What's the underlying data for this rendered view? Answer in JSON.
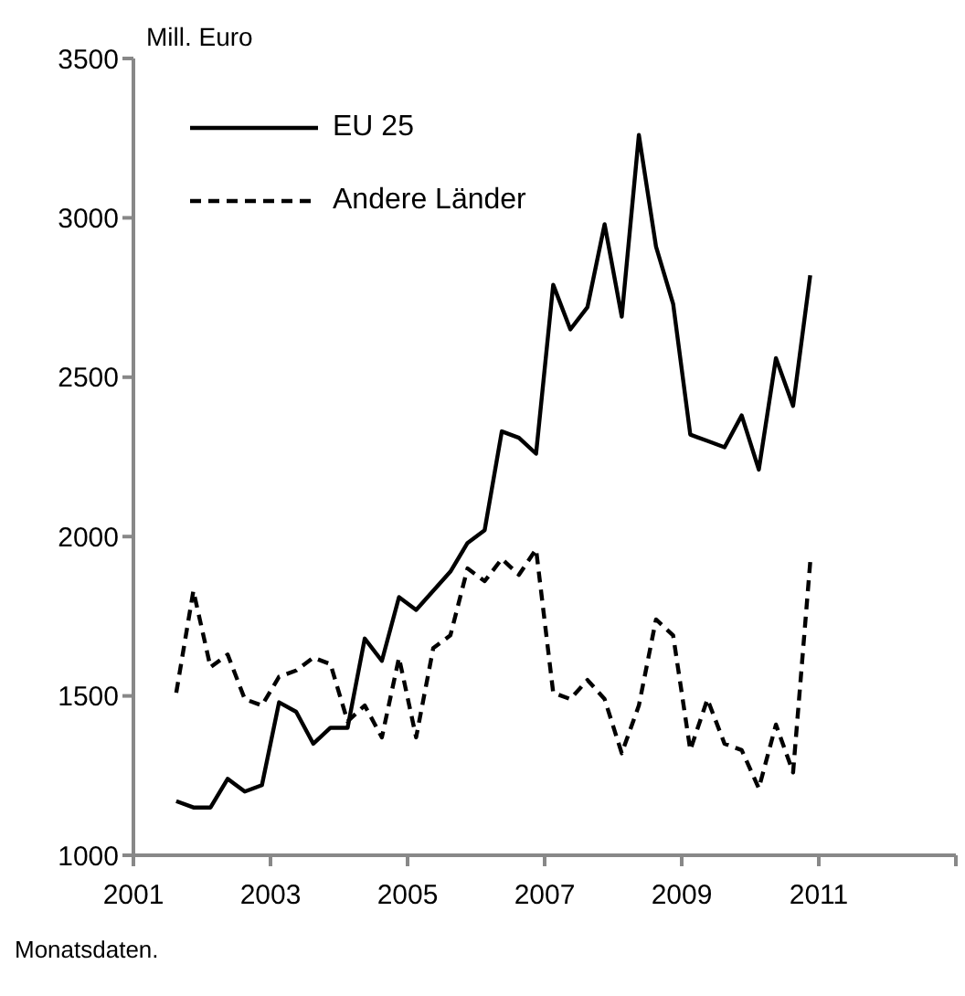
{
  "chart_data": {
    "type": "line",
    "ylabel": "Mill. Euro",
    "annotations": [
      "Monatsdaten."
    ],
    "x": [
      2001.625,
      2001.875,
      2002.125,
      2002.375,
      2002.625,
      2002.875,
      2003.125,
      2003.375,
      2003.625,
      2003.875,
      2004.125,
      2004.375,
      2004.625,
      2004.875,
      2005.125,
      2005.375,
      2005.625,
      2005.875,
      2006.125,
      2006.375,
      2006.625,
      2006.875,
      2007.125,
      2007.375,
      2007.625,
      2007.875,
      2008.125,
      2008.375,
      2008.625,
      2008.875,
      2009.125,
      2009.375,
      2009.625,
      2009.875,
      2010.125,
      2010.375,
      2010.625,
      2010.875
    ],
    "series": [
      {
        "name": "EU 25",
        "color": "#000000",
        "line_style": "solid",
        "values": [
          1170,
          1150,
          1150,
          1240,
          1200,
          1220,
          1480,
          1450,
          1350,
          1400,
          1400,
          1680,
          1610,
          1810,
          1770,
          1830,
          1890,
          1980,
          2020,
          2330,
          2310,
          2260,
          2790,
          2650,
          2720,
          2980,
          2690,
          3260,
          2910,
          2730,
          2320,
          2300,
          2280,
          2380,
          2210,
          2560,
          2410,
          2820
        ]
      },
      {
        "name": "Andere Länder",
        "color": "#000000",
        "line_style": "dashed",
        "values": [
          1510,
          1830,
          1590,
          1630,
          1490,
          1470,
          1560,
          1580,
          1620,
          1600,
          1420,
          1470,
          1370,
          1620,
          1370,
          1650,
          1690,
          1900,
          1860,
          1930,
          1880,
          1960,
          1510,
          1490,
          1550,
          1490,
          1320,
          1470,
          1740,
          1690,
          1330,
          1490,
          1350,
          1330,
          1210,
          1410,
          1260,
          1920
        ]
      }
    ],
    "xlim": [
      2001,
      2013
    ],
    "xticks": [
      2001,
      2003,
      2005,
      2007,
      2009,
      2011,
      {
        "value": 2013,
        "label": null
      }
    ],
    "ylim": [
      1000,
      3500
    ],
    "yticks": [
      1000,
      1500,
      2000,
      2500,
      3000,
      3500
    ],
    "grid": false,
    "legend": "top left",
    "marker": "none"
  }
}
